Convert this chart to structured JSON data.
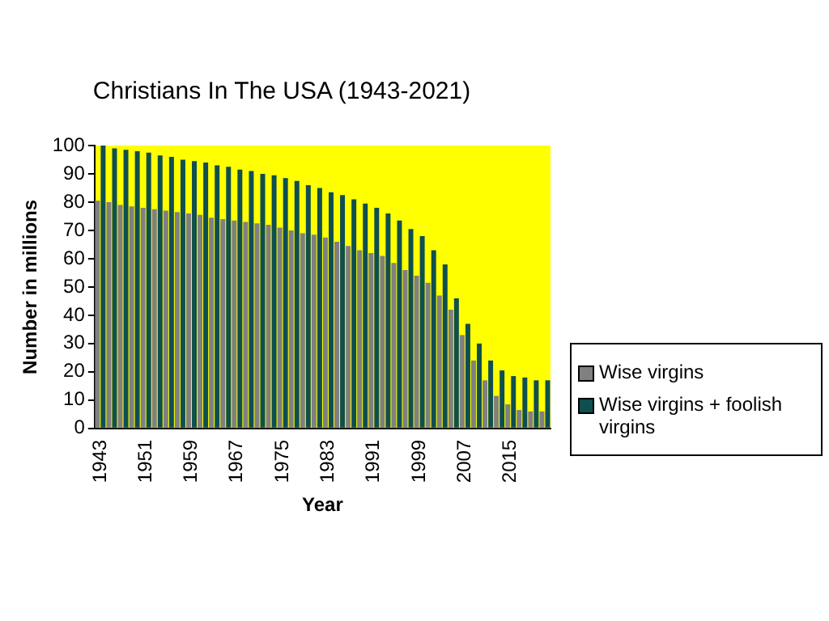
{
  "chart_data": {
    "type": "bar",
    "title": "Christians In The USA (1943-2021)",
    "xlabel": "Year",
    "ylabel": "Number in millions",
    "categories": [
      "1943",
      null,
      null,
      null,
      "1951",
      null,
      null,
      null,
      "1959",
      null,
      null,
      null,
      "1967",
      null,
      null,
      null,
      "1975",
      null,
      null,
      null,
      "1983",
      null,
      null,
      null,
      "1991",
      null,
      null,
      null,
      "1999",
      null,
      null,
      null,
      "2007",
      null,
      null,
      null,
      "2015",
      null,
      null,
      null
    ],
    "series": [
      {
        "name": "Wise virgins",
        "color": "#808080",
        "values": [
          80.5,
          80,
          79,
          78.5,
          78,
          77.5,
          77,
          76.5,
          76,
          75.5,
          74.5,
          74,
          73.5,
          73,
          72.5,
          72,
          71,
          70,
          69,
          68.5,
          67.5,
          66,
          64.5,
          63,
          62,
          61,
          58.5,
          56,
          54,
          51.5,
          47,
          42,
          33,
          24,
          17,
          11.5,
          8.5,
          6.5,
          6,
          6
        ]
      },
      {
        "name": "Wise virgins + foolish virgins",
        "color": "#0f4f4f",
        "values": [
          100,
          99,
          98.5,
          98,
          97.5,
          96.5,
          96,
          95,
          94.5,
          94,
          93,
          92.5,
          91.5,
          91,
          90,
          89.5,
          88.5,
          87.5,
          86,
          85,
          83.5,
          82.5,
          81,
          79.5,
          78,
          76,
          73.5,
          70.5,
          68,
          63,
          58,
          46,
          37,
          30,
          24,
          20.5,
          18.5,
          18,
          17,
          17
        ]
      }
    ],
    "ylim": [
      0,
      100
    ],
    "yticks": [
      0,
      10,
      20,
      30,
      40,
      50,
      60,
      70,
      80,
      90,
      100
    ],
    "grid": false,
    "legend": "right"
  }
}
